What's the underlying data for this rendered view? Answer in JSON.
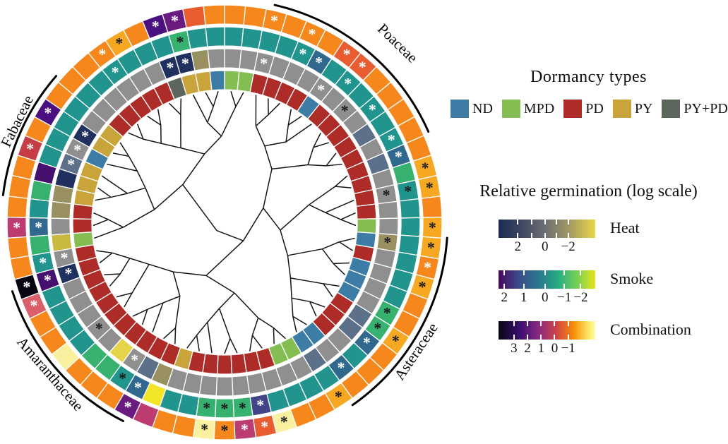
{
  "chart_data": {
    "type": "heatmap",
    "subtype": "circular-phylogeny-with-heatmap-rings",
    "n_leaves": 65,
    "rings_inner_to_outer": [
      "dormancy",
      "heat",
      "smoke",
      "combination"
    ],
    "dormancy_legend": {
      "title": "Dormancy types",
      "items": [
        {
          "label": "ND",
          "color": "#3d7ca5"
        },
        {
          "label": "MPD",
          "color": "#84bd52"
        },
        {
          "label": "PD",
          "color": "#ae2c28"
        },
        {
          "label": "PY",
          "color": "#c9a43a"
        },
        {
          "label": "PY+PD",
          "color": "#5d665c"
        }
      ]
    },
    "germination_legend": {
      "title": "Relative germination (log scale)",
      "bars": [
        {
          "label": "Heat",
          "stops": [
            "#1c2b55 0%",
            "#3a4560 22%",
            "#6e6e72 48%",
            "#a59b63 74%",
            "#ead64a 100%"
          ],
          "ticks": [
            {
              "t": "2",
              "f": 0.2
            },
            {
              "t": "0",
              "f": 0.48
            },
            {
              "t": "−2",
              "f": 0.72
            }
          ],
          "minor": [
            0.2,
            0.34,
            0.48,
            0.6,
            0.72
          ]
        },
        {
          "label": "Smoke",
          "stops": [
            "#46085c 0%",
            "#3b4a89 20%",
            "#2a788e 42%",
            "#27ad81 62%",
            "#7ad151 82%",
            "#e8e419 100%"
          ],
          "ticks": [
            {
              "t": "2",
              "f": 0.06
            },
            {
              "t": "1",
              "f": 0.26
            },
            {
              "t": "0",
              "f": 0.48
            },
            {
              "t": "−1",
              "f": 0.68
            },
            {
              "t": "−2",
              "f": 0.85
            }
          ],
          "minor": [
            0.06,
            0.26,
            0.48,
            0.68,
            0.85
          ]
        },
        {
          "label": "Combination",
          "stops": [
            "#070510 0%",
            "#3b0f70 22%",
            "#8c2981 42%",
            "#cf4446 60%",
            "#f98e09 78%",
            "#fbe45f 92%",
            "#fcffa4 100%"
          ],
          "ticks": [
            {
              "t": "3",
              "f": 0.16
            },
            {
              "t": "2",
              "f": 0.3
            },
            {
              "t": "1",
              "f": 0.44
            },
            {
              "t": "0",
              "f": 0.58
            },
            {
              "t": "−1",
              "f": 0.72
            }
          ],
          "minor": [
            0.16,
            0.3,
            0.44,
            0.58,
            0.72
          ]
        }
      ]
    },
    "families": [
      {
        "name": "Poaceae",
        "arc_start": 13,
        "arc_end": 66,
        "label_angle": 44
      },
      {
        "name": "Asteraceae",
        "arc_start": 94,
        "arc_end": 145,
        "label_angle": 124
      },
      {
        "name": "Amaranthaceae",
        "arc_start": 207,
        "arc_end": 252,
        "label_angle": 229
      },
      {
        "name": "Fabaceae",
        "arc_start": 277,
        "arc_end": 311,
        "label_angle": 296
      }
    ],
    "dormancy_colors": {
      "ND": "#3d7ca5",
      "MPD": "#84bd52",
      "PD": "#ae2c28",
      "PY": "#c9a43a",
      "PYPD": "#5d665c"
    },
    "cell_colors": {
      "gy": "#8f8f8f",
      "sl": "#5d7089",
      "nv": "#20305f",
      "ol": "#989060",
      "yl": "#e5d44a",
      "gd": "#c9b93e",
      "te": "#22948e",
      "gr": "#36b170",
      "bl": "#31688e",
      "nb": "#414487",
      "pu": "#46106e",
      "ye": "#f2e426",
      "or": "#f5871c",
      "am": "#f7a823",
      "ro": "#e85c30",
      "py": "#f9f0a0",
      "mg": "#bc3c72",
      "pk": "#d9606b",
      "pp": "#6a1b80",
      "dp": "#4a1080",
      "bk": "#0a0512",
      "rd": "#c63d45"
    },
    "marker_colors": {
      "w": "#ffffff",
      "k": "#1a1a1a"
    },
    "segments": [
      {
        "d": "MPD",
        "h": "gy",
        "s": "te",
        "c": "or",
        "m": []
      },
      {
        "d": "MPD",
        "h": "gy",
        "s": "te",
        "c": "or",
        "m": []
      },
      {
        "d": "PD",
        "h": "gy",
        "s": "te",
        "c": "or",
        "m": [
          "h:w",
          "c:w"
        ]
      },
      {
        "d": "PD",
        "h": "gy",
        "s": "te",
        "c": "or",
        "m": []
      },
      {
        "d": "PD",
        "h": "gy",
        "s": "te",
        "c": "or",
        "m": [
          "s:w",
          "c:w"
        ]
      },
      {
        "d": "PD",
        "h": "gy",
        "s": "bl",
        "c": "or",
        "m": [
          "s:w"
        ]
      },
      {
        "d": "ND",
        "h": "gy",
        "s": "te",
        "c": "ro",
        "m": [
          "h:w",
          "c:w"
        ]
      },
      {
        "d": "PD",
        "h": "gy",
        "s": "te",
        "c": "ro",
        "m": [
          "s:w",
          "c:w"
        ]
      },
      {
        "d": "PD",
        "h": "gy",
        "s": "te",
        "c": "or",
        "m": [
          "h:k"
        ]
      },
      {
        "d": "PD",
        "h": "gy",
        "s": "te",
        "c": "or",
        "m": [
          "s:w"
        ]
      },
      {
        "d": "PD",
        "h": "sl",
        "s": "te",
        "c": "or",
        "m": []
      },
      {
        "d": "PD",
        "h": "gy",
        "s": "te",
        "c": "or",
        "m": [
          "s:w"
        ]
      },
      {
        "d": "PD",
        "h": "sl",
        "s": "bl",
        "c": "or",
        "m": [
          "s:w"
        ]
      },
      {
        "d": "PD",
        "h": "gy",
        "s": "gr",
        "c": "am",
        "m": [
          "c:k"
        ]
      },
      {
        "d": "PD",
        "h": "gy",
        "s": "te",
        "c": "am",
        "m": [
          "h:k",
          "s:k",
          "c:k"
        ]
      },
      {
        "d": "PD",
        "h": "gy",
        "s": "te",
        "c": "or",
        "m": []
      },
      {
        "d": "MPD",
        "h": "gy",
        "s": "te",
        "c": "am",
        "m": [
          "c:k"
        ]
      },
      {
        "d": "ND",
        "h": "ol",
        "s": "te",
        "c": "am",
        "m": [
          "h:k",
          "c:k"
        ]
      },
      {
        "d": "PD",
        "h": "gy",
        "s": "te",
        "c": "or",
        "m": [
          "c:w"
        ]
      },
      {
        "d": "ND",
        "h": "gy",
        "s": "te",
        "c": "am",
        "m": [
          "c:k"
        ]
      },
      {
        "d": "ND",
        "h": "gy",
        "s": "te",
        "c": "or",
        "m": []
      },
      {
        "d": "ND",
        "h": "gy",
        "s": "gr",
        "c": "or",
        "m": [
          "s:k"
        ]
      },
      {
        "d": "PD",
        "h": "sl",
        "s": "gr",
        "c": "am",
        "m": [
          "s:k",
          "c:k"
        ]
      },
      {
        "d": "PD",
        "h": "sl",
        "s": "bl",
        "c": "or",
        "m": [
          "s:w"
        ]
      },
      {
        "d": "PD",
        "h": "gy",
        "s": "te",
        "c": "or",
        "m": []
      },
      {
        "d": "ND",
        "h": "gy",
        "s": "bl",
        "c": "or",
        "m": [
          "s:w"
        ]
      },
      {
        "d": "ND",
        "h": "sl",
        "s": "te",
        "c": "am",
        "m": [
          "c:k"
        ]
      },
      {
        "d": "MPD",
        "h": "gy",
        "s": "te",
        "c": "or",
        "m": []
      },
      {
        "d": "MPD",
        "h": "gy",
        "s": "te",
        "c": "or",
        "m": []
      },
      {
        "d": "PD",
        "h": "gy",
        "s": "te",
        "c": "py",
        "m": [
          "c:k"
        ]
      },
      {
        "d": "PD",
        "h": "gy",
        "s": "nb",
        "c": "ro",
        "m": [
          "s:w",
          "c:w"
        ]
      },
      {
        "d": "PD",
        "h": "gy",
        "s": "gr",
        "c": "mg",
        "m": [
          "s:k",
          "c:w"
        ]
      },
      {
        "d": "PD",
        "h": "gy",
        "s": "gr",
        "c": "or",
        "m": [
          "s:k",
          "c:k"
        ]
      },
      {
        "d": "PD",
        "h": "gy",
        "s": "gr",
        "c": "py",
        "m": [
          "s:k",
          "c:k"
        ]
      },
      {
        "d": "PD",
        "h": "gy",
        "s": "te",
        "c": "or",
        "m": []
      },
      {
        "d": "PY",
        "h": "gy",
        "s": "te",
        "c": "or",
        "m": []
      },
      {
        "d": "PD",
        "h": "ol",
        "s": "ye",
        "c": "mg",
        "m": []
      },
      {
        "d": "PD",
        "h": "sl",
        "s": "bl",
        "c": "pp",
        "m": [
          "s:w",
          "c:w"
        ]
      },
      {
        "d": "PD",
        "h": "gy",
        "s": "te",
        "c": "or",
        "m": [
          "h:w",
          "s:k"
        ]
      },
      {
        "d": "PD",
        "h": "yl",
        "s": "gr",
        "c": "or",
        "m": []
      },
      {
        "d": "PD",
        "h": "gy",
        "s": "gr",
        "c": "or",
        "m": []
      },
      {
        "d": "PD",
        "h": "gy",
        "s": "te",
        "c": "py",
        "m": [
          "h:k"
        ]
      },
      {
        "d": "PD",
        "h": "gy",
        "s": "te",
        "c": "or",
        "m": []
      },
      {
        "d": "PD",
        "h": "gy",
        "s": "te",
        "c": "or",
        "m": []
      },
      {
        "d": "PD",
        "h": "gy",
        "s": "te",
        "c": "pk",
        "m": [
          "c:w"
        ]
      },
      {
        "d": "PD",
        "h": "nv",
        "s": "pu",
        "c": "bk",
        "m": [
          "h:w",
          "s:w",
          "c:w"
        ]
      },
      {
        "d": "PD",
        "h": "gy",
        "s": "te",
        "c": "or",
        "m": [
          "h:w",
          "s:w"
        ]
      },
      {
        "d": "MPD",
        "h": "gd",
        "s": "gr",
        "c": "or",
        "m": []
      },
      {
        "d": "PD",
        "h": "gy",
        "s": "bl",
        "c": "mg",
        "m": [
          "s:w",
          "c:w"
        ]
      },
      {
        "d": "PD",
        "h": "ol",
        "s": "te",
        "c": "or",
        "m": []
      },
      {
        "d": "PY",
        "h": "ol",
        "s": "gr",
        "c": "or",
        "m": []
      },
      {
        "d": "PY",
        "h": "nv",
        "s": "pu",
        "c": "or",
        "m": []
      },
      {
        "d": "PY",
        "h": "sl",
        "s": "te",
        "c": "rd",
        "m": [
          "h:w",
          "c:w"
        ]
      },
      {
        "d": "ND",
        "h": "gy",
        "s": "te",
        "c": "or",
        "m": [
          "h:w"
        ]
      },
      {
        "d": "PY",
        "h": "nv",
        "s": "te",
        "c": "dp",
        "m": [
          "h:w",
          "c:w"
        ]
      },
      {
        "d": "PY",
        "h": "gy",
        "s": "te",
        "c": "or",
        "m": []
      },
      {
        "d": "PD",
        "h": "gy",
        "s": "te",
        "c": "or",
        "m": []
      },
      {
        "d": "PD",
        "h": "gy",
        "s": "te",
        "c": "or",
        "m": []
      },
      {
        "d": "PD",
        "h": "gy",
        "s": "te",
        "c": "or",
        "m": [
          "s:w",
          "c:w"
        ]
      },
      {
        "d": "PD",
        "h": "gy",
        "s": "te",
        "c": "am",
        "m": [
          "c:k"
        ]
      },
      {
        "d": "PD",
        "h": "gy",
        "s": "te",
        "c": "or",
        "m": []
      },
      {
        "d": "PYPD",
        "h": "nv",
        "s": "te",
        "c": "dp",
        "m": [
          "h:w",
          "c:w"
        ]
      },
      {
        "d": "PY",
        "h": "nv",
        "s": "gr",
        "c": "pp",
        "m": [
          "h:w",
          "s:k",
          "c:w"
        ]
      },
      {
        "d": "PY",
        "h": "ol",
        "s": "te",
        "c": "ro",
        "m": []
      },
      {
        "d": "ND",
        "h": "gy",
        "s": "te",
        "c": "or",
        "m": []
      }
    ],
    "tree": [
      [
        [
          [
            [
              [
                2,
                [
                  3,
                  4
                ]
              ],
              [
                [
                  5,
                  6
                ],
                7
              ]
            ],
            [
              [
                8,
                9
              ],
              [
                10,
                11
              ]
            ]
          ],
          [
            [
              [
                12,
                13
              ],
              [
                14,
                [
                  15,
                  16
                ]
              ]
            ],
            [
              [
                [
                  17,
                  18
                ],
                [
                  19,
                  20
                ]
              ],
              [
                [
                  21,
                  22
                ],
                [
                  [
                    23,
                    24
                  ],
                  [
                    25,
                    26
                  ]
                ]
              ]
            ]
          ]
        ],
        [
          [
            [
              [
                27,
                28
              ],
              [
                29,
                30
              ]
            ],
            [
              [
                31,
                32
              ],
              [
                33,
                [
                  34,
                  35
                ]
              ]
            ]
          ],
          [
            [
              [
                36,
                37
              ],
              [
                38,
                [
                  39,
                  40
                ]
              ]
            ],
            [
              [
                41,
                42
              ],
              [
                [
                  43,
                  44
                ],
                [
                  45,
                  46
                ]
              ]
            ]
          ]
        ]
      ],
      [
        [
          [
            47,
            [
              48,
              49
            ]
          ],
          [
            [
              [
                50,
                51
              ],
              52
            ],
            [
              53,
              [
                54,
                55
              ]
            ]
          ]
        ],
        [
          [
            [
              [
                56,
                57
              ],
              [
                58,
                59
              ]
            ],
            [
              60,
              61
            ]
          ],
          [
            [
              62,
              [
                63,
                64
              ]
            ],
            [
              0,
              1
            ]
          ]
        ]
      ]
    ]
  }
}
